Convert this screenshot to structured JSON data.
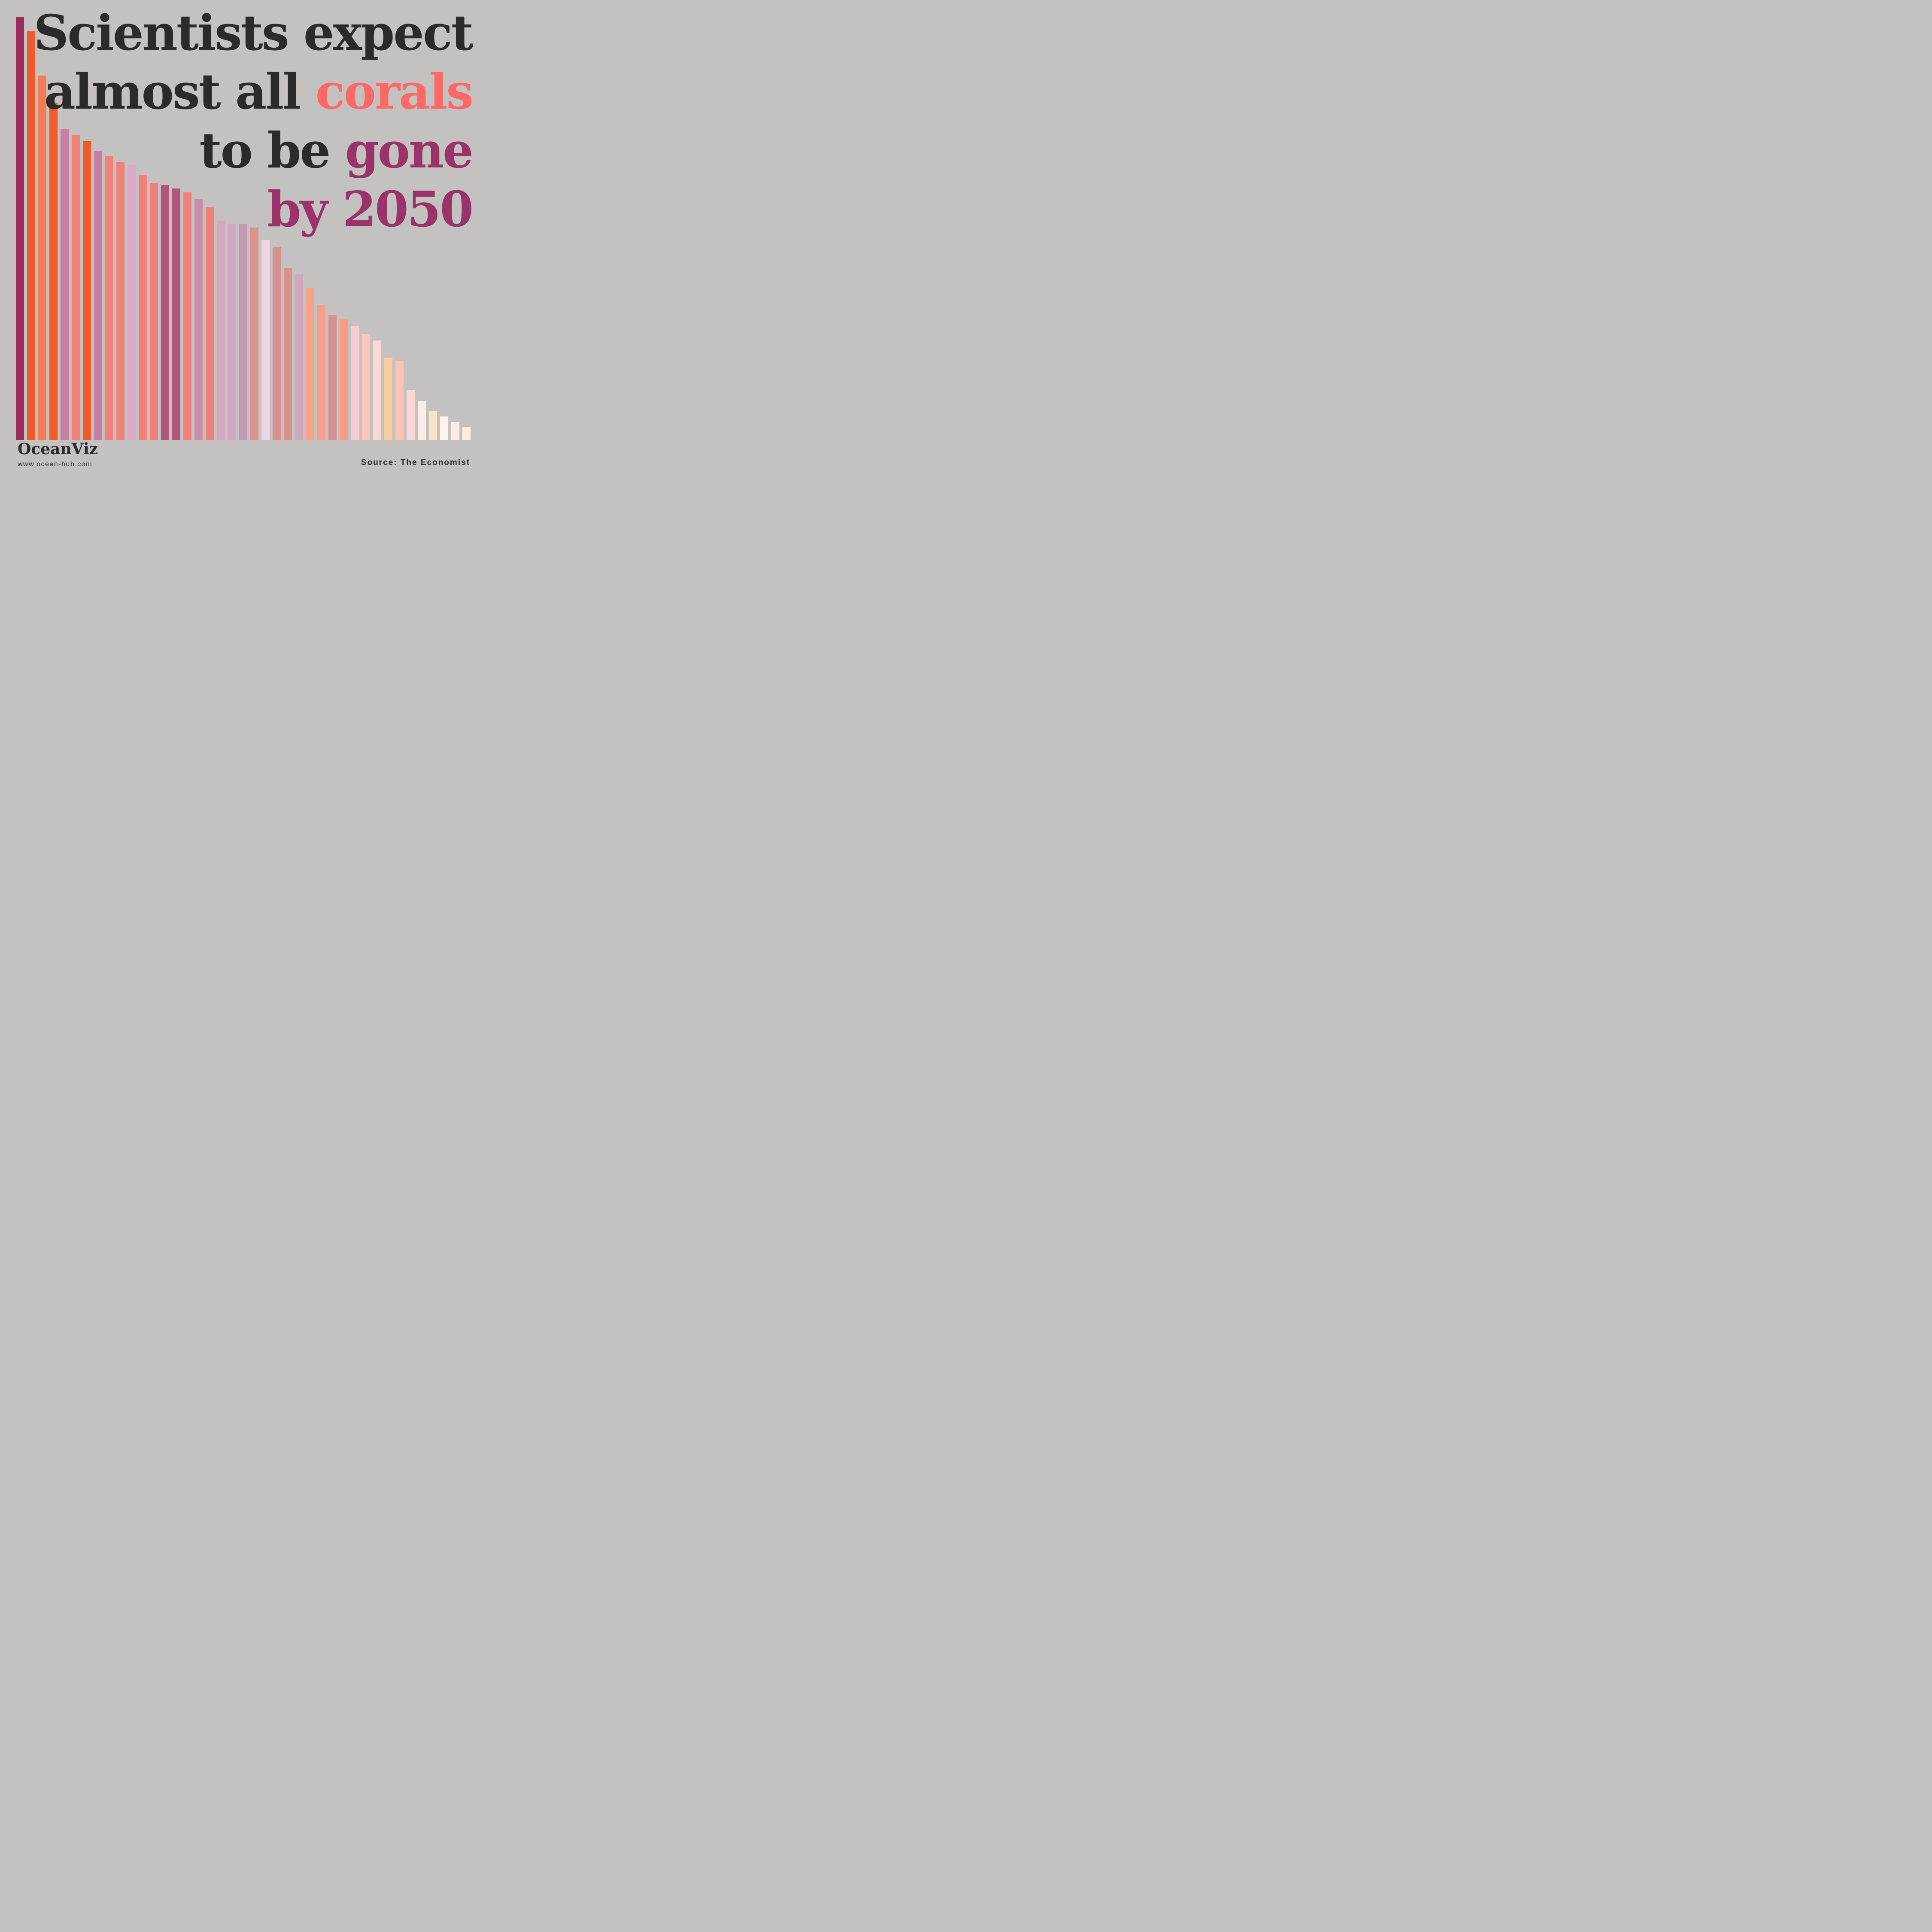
{
  "colors": {
    "background": "#C3C2C1",
    "text": "#2B2B2B",
    "coral_highlight": "#FD6A66",
    "magenta_highlight": "#993369"
  },
  "headline": {
    "line1": "Scientists expect",
    "line2_prefix": "almost all ",
    "line2_highlight": "corals",
    "line3_prefix": "to be ",
    "line3_highlight": "gone",
    "line4": "by 2050"
  },
  "footer": {
    "brand": "OceanViz",
    "website": "www.ocean-hub.com",
    "source": "Source: The Economist"
  },
  "chart_data": {
    "type": "bar",
    "title": "Scientists expect almost all corals to be gone by 2050",
    "orientation": "vertical",
    "axes_shown": false,
    "gridlines": false,
    "legend": "none",
    "baseline": "bottom",
    "unit": "percent of tallest bar (decorative declining series, no labeled axes)",
    "n_bars": 41,
    "values": [
      100.0,
      96.6,
      86.1,
      79.7,
      73.4,
      72.0,
      70.7,
      68.4,
      67.1,
      65.6,
      65.0,
      62.6,
      60.8,
      60.2,
      59.4,
      58.5,
      56.9,
      55.0,
      51.8,
      51.1,
      51.1,
      50.2,
      47.3,
      45.6,
      40.7,
      39.3,
      36.0,
      31.9,
      29.5,
      28.5,
      26.9,
      25.1,
      23.5,
      19.5,
      18.8,
      11.8,
      9.2,
      6.8,
      5.6,
      4.3,
      3.0
    ],
    "colors": [
      "#9E2B5C",
      "#F15A29",
      "#F47C55",
      "#F15A29",
      "#C77FA5",
      "#F08079",
      "#F15A29",
      "#C77FA5",
      "#F08079",
      "#F08079",
      "#DBA9C6",
      "#F08079",
      "#F08079",
      "#B15579",
      "#B15579",
      "#F08079",
      "#C78DA8",
      "#F08079",
      "#D5A8C2",
      "#D5A8C2",
      "#C09AB2",
      "#DB9290",
      "#ECD5E0",
      "#D9918F",
      "#D9918F",
      "#D2A5C0",
      "#FCA189",
      "#FA9D8B",
      "#D89093",
      "#FA9C85",
      "#F6CBD1",
      "#FCC6BD",
      "#FBD8D4",
      "#F5CFA0",
      "#FCC3B4",
      "#FBD8D6",
      "#FDEBE7",
      "#FAE3C8",
      "#FEF4ED",
      "#FDEAE8",
      "#FBEFDE"
    ],
    "source_label": "Source: The Economist"
  }
}
